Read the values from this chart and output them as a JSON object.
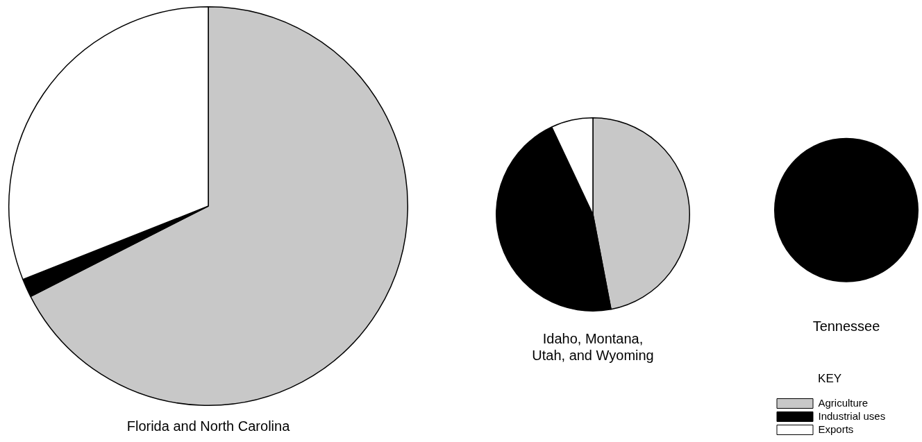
{
  "chart_data": [
    {
      "type": "pie",
      "title": "Florida and North Carolina",
      "categories": [
        null,
        null,
        null
      ],
      "values": [
        67.5,
        1.5,
        31
      ],
      "colors": [
        "#c8c8c8",
        "#000000",
        "#ffffff"
      ],
      "legend": false
    },
    {
      "type": "pie",
      "title": "Idaho, Montana, Utah, and Wyoming",
      "categories": [
        null,
        null,
        null
      ],
      "values": [
        47,
        46,
        7
      ],
      "colors": [
        "#c8c8c8",
        "#000000",
        "#ffffff"
      ],
      "legend": false
    },
    {
      "type": "pie",
      "title": "Tennessee",
      "categories": [
        "Agriculture",
        "Industrial uses",
        "Exports"
      ],
      "values": [
        0,
        100,
        0
      ],
      "colors": [
        "#c8c8c8",
        "#000000",
        "#ffffff"
      ],
      "legend": "bottom",
      "legend_title": "KEY"
    }
  ]
}
